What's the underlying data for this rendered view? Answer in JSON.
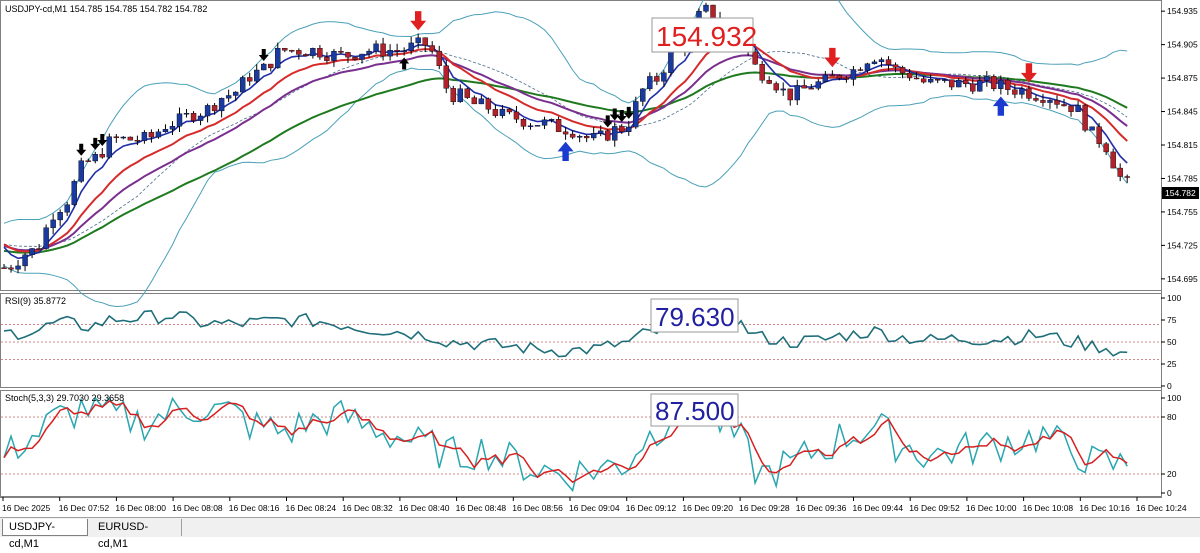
{
  "main_panel": {
    "title": "USDJPY-cd,M1  154.785 154.785 154.782 154.782",
    "price_ticks": [
      "154.935",
      "154.905",
      "154.875",
      "154.845",
      "154.815",
      "154.785",
      "154.755",
      "154.725",
      "154.695"
    ],
    "current_price": "154.782",
    "callout_price": "154.932"
  },
  "rsi_panel": {
    "title": "RSI(9) 35.8772",
    "ticks": [
      "100",
      "75",
      "50",
      "25",
      "0"
    ],
    "callout_value": "79.630"
  },
  "stoch_panel": {
    "title": "Stoch(5,3,3) 29.7030 29.3658",
    "ticks": [
      "100",
      "80",
      "20",
      "0"
    ],
    "callout_value": "87.500"
  },
  "time_axis": [
    "16 Dec 2025",
    "16 Dec 07:52",
    "16 Dec 08:00",
    "16 Dec 08:08",
    "16 Dec 08:16",
    "16 Dec 08:24",
    "16 Dec 08:32",
    "16 Dec 08:40",
    "16 Dec 08:48",
    "16 Dec 08:56",
    "16 Dec 09:04",
    "16 Dec 09:12",
    "16 Dec 09:20",
    "16 Dec 09:28",
    "16 Dec 09:36",
    "16 Dec 09:44",
    "16 Dec 09:52",
    "16 Dec 10:00",
    "16 Dec 10:08",
    "16 Dec 10:16",
    "16 Dec 10:24"
  ],
  "tabs": [
    {
      "label": "USDJPY-cd,M1",
      "active": true
    },
    {
      "label": "EURUSD-cd,M1",
      "active": false
    }
  ],
  "colors": {
    "bull_candle": "#1a3aa0",
    "bear_candle": "#b3212a",
    "bollinger": "#4aa0b8",
    "ma_fast": "#1f2ea8",
    "ma_red": "#d62b2b",
    "ma_purple": "#7a2f8f",
    "ma_green": "#1f7a1f",
    "rsi_line": "#1f6f7a",
    "stoch_main": "#2aa6b0",
    "stoch_signal": "#d62020",
    "level_line": "#c06060",
    "callout_red": "#e02020",
    "callout_blue": "#2020a0"
  },
  "chart_data": {
    "type": "line",
    "x": [
      0,
      4,
      8,
      12,
      16,
      20,
      24,
      28,
      32,
      36,
      40,
      44,
      48,
      52,
      56,
      60,
      64,
      68,
      72,
      76,
      80,
      84,
      88,
      92,
      96,
      100,
      104,
      108,
      112,
      116,
      120,
      124,
      128,
      132,
      136,
      140,
      144,
      148,
      152,
      156,
      160
    ],
    "series": [
      {
        "name": "",
        "values": [
          154.705,
          154.72,
          154.76,
          154.8,
          154.82,
          154.82,
          154.835,
          154.845,
          154.86,
          154.88,
          154.9,
          154.9,
          154.895,
          154.9,
          154.9,
          154.905,
          154.86,
          154.85,
          154.84,
          154.835,
          154.83,
          154.82,
          154.83,
          154.87,
          154.9,
          154.935,
          154.915,
          154.88,
          154.86,
          154.87,
          154.88,
          154.895,
          154.88,
          154.87,
          154.87,
          154.87,
          154.865,
          154.86,
          154.85,
          154.82,
          154.78
        ]
      },
      {
        "name": "RSI(9)",
        "values": [
          60,
          62,
          72,
          68,
          76,
          78,
          80,
          72,
          70,
          72,
          75,
          74,
          70,
          65,
          62,
          58,
          50,
          48,
          45,
          42,
          40,
          42,
          48,
          60,
          70,
          79.6,
          72,
          55,
          50,
          52,
          58,
          62,
          55,
          52,
          54,
          53,
          55,
          58,
          50,
          45,
          36
        ]
      },
      {
        "name": "Stoch(5,3,3)",
        "values": [
          40,
          60,
          80,
          90,
          80,
          75,
          85,
          90,
          85,
          70,
          65,
          75,
          80,
          70,
          60,
          50,
          40,
          45,
          35,
          25,
          20,
          25,
          30,
          60,
          90,
          87.5,
          60,
          20,
          30,
          45,
          60,
          70,
          50,
          40,
          45,
          50,
          55,
          60,
          45,
          30,
          29.7
        ]
      }
    ],
    "ylim": [
      154.695,
      154.945
    ]
  }
}
